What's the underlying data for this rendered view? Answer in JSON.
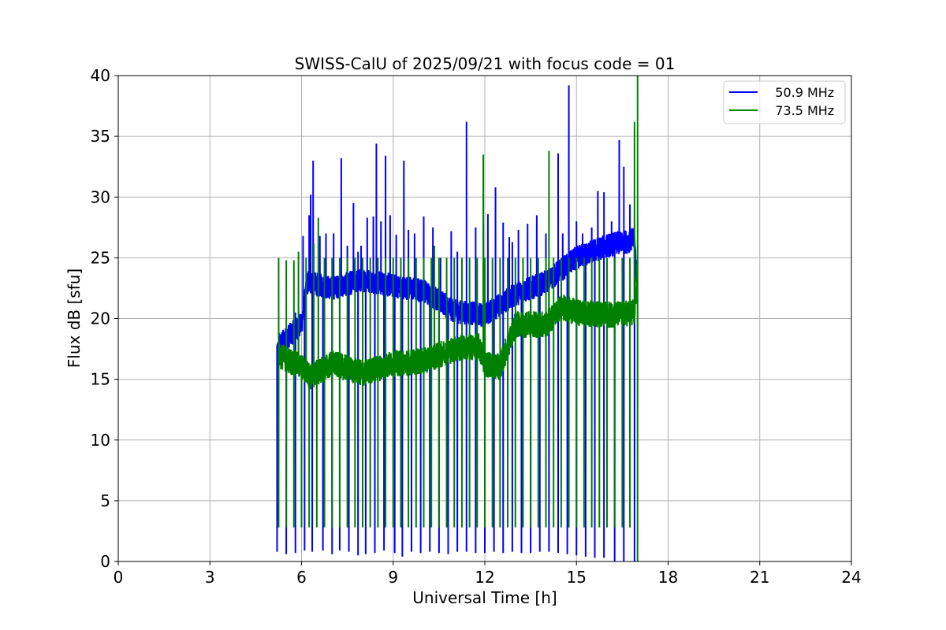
{
  "chart_data": {
    "type": "line",
    "title": "SWISS-CalU of 2025/09/21 with focus code = 01",
    "xlabel": "Universal Time [h]",
    "ylabel": "Flux dB [sfu]",
    "xlim": [
      0,
      24
    ],
    "ylim": [
      0,
      40
    ],
    "xticks": [
      0,
      3,
      6,
      9,
      12,
      15,
      18,
      21,
      24
    ],
    "yticks": [
      0,
      5,
      10,
      15,
      20,
      25,
      30,
      35,
      40
    ],
    "grid": true,
    "legend_position": "top-right",
    "x_start": 5.25,
    "x_end": 17.0,
    "series": [
      {
        "name": "   50.9 MHz",
        "color": "#0000ff",
        "baseline_points": [
          [
            5.25,
            17.8
          ],
          [
            6.0,
            19.5
          ],
          [
            6.2,
            23.0
          ],
          [
            7.0,
            22.5
          ],
          [
            8.0,
            23.2
          ],
          [
            9.0,
            22.7
          ],
          [
            10.0,
            22.3
          ],
          [
            11.0,
            20.6
          ],
          [
            12.0,
            20.3
          ],
          [
            13.0,
            22.0
          ],
          [
            14.0,
            23.0
          ],
          [
            15.0,
            25.0
          ],
          [
            16.0,
            26.0
          ],
          [
            16.9,
            26.5
          ],
          [
            17.0,
            22.0
          ]
        ],
        "spikes": [
          [
            5.6,
            19.5
          ],
          [
            5.8,
            20.5
          ],
          [
            6.05,
            26.8
          ],
          [
            6.25,
            28.5
          ],
          [
            6.3,
            30.2
          ],
          [
            6.38,
            33.0
          ],
          [
            6.6,
            26.8
          ],
          [
            6.8,
            27.0
          ],
          [
            7.05,
            27.0
          ],
          [
            7.3,
            33.2
          ],
          [
            7.5,
            26.0
          ],
          [
            7.7,
            29.5
          ],
          [
            7.85,
            25.5
          ],
          [
            7.95,
            26.0
          ],
          [
            8.15,
            28.3
          ],
          [
            8.35,
            28.4
          ],
          [
            8.45,
            34.4
          ],
          [
            8.6,
            28.0
          ],
          [
            8.75,
            33.4
          ],
          [
            8.9,
            28.5
          ],
          [
            9.1,
            26.9
          ],
          [
            9.35,
            33.0
          ],
          [
            9.5,
            27.3
          ],
          [
            9.7,
            27.0
          ],
          [
            10.0,
            28.4
          ],
          [
            10.3,
            27.5
          ],
          [
            10.55,
            25.0
          ],
          [
            10.9,
            27.2
          ],
          [
            11.1,
            25.5
          ],
          [
            11.4,
            36.2
          ],
          [
            11.7,
            27.5
          ],
          [
            11.95,
            27.8
          ],
          [
            12.1,
            28.6
          ],
          [
            12.35,
            30.8
          ],
          [
            12.6,
            27.9
          ],
          [
            12.8,
            26.7
          ],
          [
            12.9,
            26.3
          ],
          [
            13.1,
            27.3
          ],
          [
            13.4,
            27.8
          ],
          [
            13.7,
            28.5
          ],
          [
            14.0,
            27.0
          ],
          [
            14.4,
            33.6
          ],
          [
            14.55,
            27.0
          ],
          [
            14.75,
            39.2
          ],
          [
            15.0,
            28.0
          ],
          [
            15.2,
            27.0
          ],
          [
            15.5,
            27.5
          ],
          [
            15.7,
            30.5
          ],
          [
            15.9,
            30.4
          ],
          [
            16.15,
            28.0
          ],
          [
            16.4,
            34.7
          ],
          [
            16.55,
            32.5
          ],
          [
            16.75,
            29.4
          ]
        ],
        "dips": [
          [
            5.2,
            0.8
          ],
          [
            5.5,
            0.6
          ],
          [
            5.8,
            0.7
          ],
          [
            6.1,
            0.9
          ],
          [
            6.35,
            0.8
          ],
          [
            6.7,
            0.9
          ],
          [
            7.0,
            0.6
          ],
          [
            7.25,
            0.9
          ],
          [
            7.55,
            0.8
          ],
          [
            7.85,
            0.5
          ],
          [
            8.1,
            0.6
          ],
          [
            8.4,
            0.7
          ],
          [
            8.7,
            0.9
          ],
          [
            9.05,
            0.7
          ],
          [
            9.3,
            0.4
          ],
          [
            9.6,
            0.8
          ],
          [
            9.9,
            0.7
          ],
          [
            10.2,
            0.8
          ],
          [
            10.5,
            0.7
          ],
          [
            10.8,
            0.6
          ],
          [
            11.1,
            0.8
          ],
          [
            11.4,
            0.8
          ],
          [
            11.7,
            0.7
          ],
          [
            12.0,
            0.7
          ],
          [
            12.3,
            0.8
          ],
          [
            12.6,
            0.7
          ],
          [
            12.9,
            0.8
          ],
          [
            13.2,
            0.7
          ],
          [
            13.5,
            0.7
          ],
          [
            13.8,
            0.8
          ],
          [
            14.1,
            0.8
          ],
          [
            14.4,
            0.7
          ],
          [
            14.7,
            0.6
          ],
          [
            15.0,
            0.5
          ],
          [
            15.3,
            0.4
          ],
          [
            15.6,
            0.3
          ],
          [
            15.9,
            0.3
          ],
          [
            16.25,
            0.0
          ],
          [
            16.55,
            0.0
          ],
          [
            16.9,
            0.0
          ]
        ]
      },
      {
        "name": "   73.5 MHz",
        "color": "#008000",
        "baseline_points": [
          [
            5.25,
            17.0
          ],
          [
            6.0,
            16.0
          ],
          [
            6.3,
            15.2
          ],
          [
            7.0,
            16.3
          ],
          [
            8.0,
            15.5
          ],
          [
            9.0,
            16.3
          ],
          [
            10.0,
            16.5
          ],
          [
            11.0,
            17.5
          ],
          [
            11.8,
            17.7
          ],
          [
            12.0,
            16.3
          ],
          [
            12.5,
            16.0
          ],
          [
            13.0,
            19.5
          ],
          [
            14.0,
            19.5
          ],
          [
            14.5,
            21.0
          ],
          [
            15.0,
            20.5
          ],
          [
            16.0,
            20.3
          ],
          [
            16.9,
            20.5
          ],
          [
            17.0,
            24.0
          ]
        ],
        "spikes": [
          [
            5.25,
            25.0
          ],
          [
            5.5,
            24.8
          ],
          [
            5.75,
            24.8
          ],
          [
            5.9,
            25.5
          ],
          [
            6.15,
            25.0
          ],
          [
            6.4,
            26.2
          ],
          [
            6.55,
            28.3
          ],
          [
            6.75,
            25.0
          ],
          [
            7.0,
            25.0
          ],
          [
            7.25,
            25.0
          ],
          [
            7.5,
            25.0
          ],
          [
            7.75,
            25.0
          ],
          [
            8.0,
            25.0
          ],
          [
            8.25,
            25.0
          ],
          [
            8.5,
            25.0
          ],
          [
            8.75,
            25.0
          ],
          [
            9.0,
            25.0
          ],
          [
            9.25,
            25.0
          ],
          [
            9.5,
            25.0
          ],
          [
            9.75,
            25.0
          ],
          [
            10.0,
            25.0
          ],
          [
            10.25,
            25.0
          ],
          [
            10.5,
            25.0
          ],
          [
            10.75,
            25.0
          ],
          [
            11.0,
            25.0
          ],
          [
            11.25,
            25.0
          ],
          [
            11.5,
            25.0
          ],
          [
            11.75,
            25.0
          ],
          [
            12.0,
            25.0
          ],
          [
            12.25,
            25.0
          ],
          [
            12.5,
            25.0
          ],
          [
            12.75,
            25.0
          ],
          [
            13.0,
            25.0
          ],
          [
            13.25,
            25.0
          ],
          [
            13.5,
            25.0
          ],
          [
            13.75,
            25.0
          ],
          [
            14.0,
            25.0
          ],
          [
            14.25,
            25.0
          ],
          [
            14.5,
            25.0
          ],
          [
            14.75,
            25.0
          ],
          [
            15.0,
            25.0
          ],
          [
            15.25,
            25.0
          ],
          [
            15.5,
            25.0
          ],
          [
            15.75,
            25.0
          ],
          [
            16.0,
            25.0
          ],
          [
            16.25,
            25.0
          ],
          [
            16.5,
            25.0
          ],
          [
            16.75,
            25.0
          ],
          [
            11.95,
            33.5
          ],
          [
            14.1,
            33.8
          ],
          [
            16.9,
            36.2
          ],
          [
            17.0,
            40.0
          ],
          [
            10.35,
            26.0
          ]
        ],
        "dips": [
          [
            5.25,
            2.8
          ],
          [
            5.5,
            2.8
          ],
          [
            5.75,
            2.8
          ],
          [
            6.0,
            2.8
          ],
          [
            6.25,
            2.8
          ],
          [
            6.5,
            2.8
          ],
          [
            6.75,
            2.8
          ],
          [
            7.0,
            2.8
          ],
          [
            7.25,
            2.8
          ],
          [
            7.5,
            2.8
          ],
          [
            7.75,
            2.8
          ],
          [
            8.0,
            2.8
          ],
          [
            8.25,
            2.8
          ],
          [
            8.5,
            2.8
          ],
          [
            8.75,
            2.8
          ],
          [
            9.0,
            2.8
          ],
          [
            9.25,
            2.8
          ],
          [
            9.5,
            2.8
          ],
          [
            9.75,
            2.8
          ],
          [
            10.0,
            2.8
          ],
          [
            10.25,
            2.8
          ],
          [
            10.5,
            2.8
          ],
          [
            10.75,
            2.8
          ],
          [
            11.0,
            2.8
          ],
          [
            11.25,
            2.8
          ],
          [
            11.5,
            2.8
          ],
          [
            11.75,
            2.8
          ],
          [
            12.0,
            2.8
          ],
          [
            12.25,
            2.8
          ],
          [
            12.5,
            2.8
          ],
          [
            12.75,
            2.8
          ],
          [
            13.0,
            2.8
          ],
          [
            13.25,
            2.8
          ],
          [
            13.5,
            2.8
          ],
          [
            13.75,
            2.8
          ],
          [
            14.0,
            2.8
          ],
          [
            14.25,
            2.8
          ],
          [
            14.5,
            2.8
          ],
          [
            14.75,
            2.8
          ],
          [
            15.0,
            2.8
          ],
          [
            15.25,
            2.8
          ],
          [
            15.5,
            2.8
          ],
          [
            15.75,
            2.8
          ],
          [
            16.0,
            2.8
          ],
          [
            16.25,
            2.8
          ],
          [
            16.5,
            2.8
          ],
          [
            16.75,
            2.8
          ],
          [
            17.0,
            0.0
          ]
        ]
      }
    ]
  }
}
